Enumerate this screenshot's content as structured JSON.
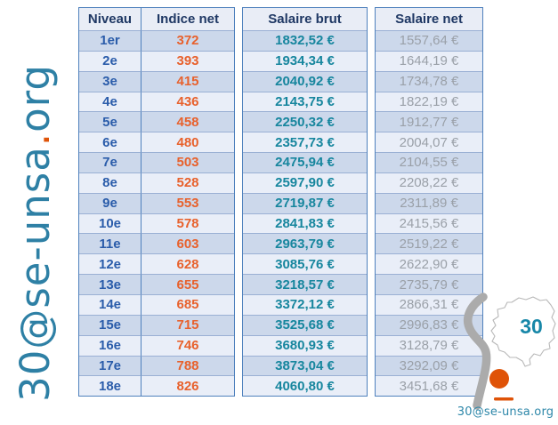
{
  "watermark": {
    "prefix": "30@se-unsa",
    "dot": ".",
    "suffix": "org"
  },
  "table": {
    "headers": [
      "Niveau",
      "Indice net",
      "Salaire brut",
      "Salaire net"
    ],
    "rows": [
      {
        "niveau": "1er",
        "indice": "372",
        "brut": "1832,52 €",
        "net": "1557,64 €"
      },
      {
        "niveau": "2e",
        "indice": "393",
        "brut": "1934,34 €",
        "net": "1644,19 €"
      },
      {
        "niveau": "3e",
        "indice": "415",
        "brut": "2040,92 €",
        "net": "1734,78 €"
      },
      {
        "niveau": "4e",
        "indice": "436",
        "brut": "2143,75 €",
        "net": "1822,19 €"
      },
      {
        "niveau": "5e",
        "indice": "458",
        "brut": "2250,32 €",
        "net": "1912,77 €"
      },
      {
        "niveau": "6e",
        "indice": "480",
        "brut": "2357,73 €",
        "net": "2004,07 €"
      },
      {
        "niveau": "7e",
        "indice": "503",
        "brut": "2475,94 €",
        "net": "2104,55 €"
      },
      {
        "niveau": "8e",
        "indice": "528",
        "brut": "2597,90 €",
        "net": "2208,22 €"
      },
      {
        "niveau": "9e",
        "indice": "553",
        "brut": "2719,87 €",
        "net": "2311,89 €"
      },
      {
        "niveau": "10e",
        "indice": "578",
        "brut": "2841,83 €",
        "net": "2415,56 €"
      },
      {
        "niveau": "11e",
        "indice": "603",
        "brut": "2963,79 €",
        "net": "2519,22 €"
      },
      {
        "niveau": "12e",
        "indice": "628",
        "brut": "3085,76 €",
        "net": "2622,90 €"
      },
      {
        "niveau": "13e",
        "indice": "655",
        "brut": "3218,57 €",
        "net": "2735,79 €"
      },
      {
        "niveau": "14e",
        "indice": "685",
        "brut": "3372,12 €",
        "net": "2866,31 €"
      },
      {
        "niveau": "15e",
        "indice": "715",
        "brut": "3525,68 €",
        "net": "2996,83 €"
      },
      {
        "niveau": "16e",
        "indice": "746",
        "brut": "3680,93 €",
        "net": "3128,79 €"
      },
      {
        "niveau": "17e",
        "indice": "788",
        "brut": "3873,04 €",
        "net": "3292,09 €"
      },
      {
        "niveau": "18e",
        "indice": "826",
        "brut": "4060,80 €",
        "net": "3451,68 €"
      }
    ]
  },
  "logo": {
    "department_label": "30",
    "site": "30@se-unsa.org"
  },
  "colors": {
    "watermark_teal": "#2e80a5",
    "accent_orange": "#df5308",
    "indice_orange": "#e8612c",
    "brut_teal": "#17869e",
    "net_gray": "#9aa0a8",
    "header_navy": "#1f3864",
    "niveau_blue": "#2a5caa",
    "table_border_blue": "#4f81bd",
    "row_dark": "#ccd8eb",
    "row_light": "#e9eef8",
    "logo_gray": "#ababab",
    "logo_teal": "#1787a8"
  }
}
